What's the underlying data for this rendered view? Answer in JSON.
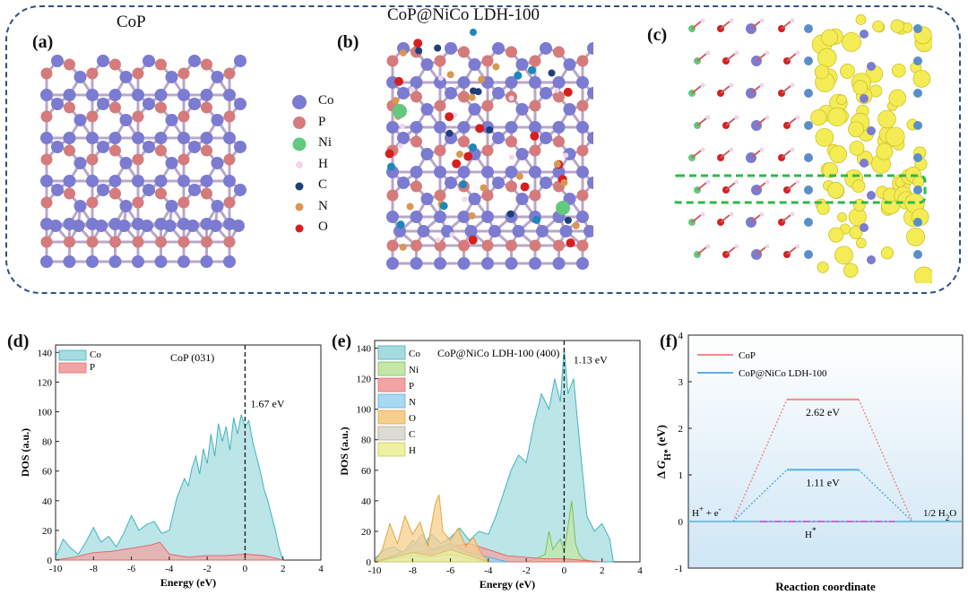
{
  "panel_labels": {
    "a": "(a)",
    "b": "(b)",
    "c": "(c)",
    "d": "(d)",
    "e": "(e)",
    "f": "(f)"
  },
  "structure_titles": {
    "a": "CoP",
    "b": "CoP@NiCo LDH-100"
  },
  "atom_legend": [
    {
      "label": "Co",
      "color": "#7b7bd1",
      "size": 16
    },
    {
      "label": "P",
      "color": "#d57b7b",
      "size": 14
    },
    {
      "label": "Ni",
      "color": "#62c97e",
      "size": 15
    },
    {
      "label": "H",
      "color": "#efd6ef",
      "size": 8
    },
    {
      "label": "C",
      "color": "#1f3f77",
      "size": 9
    },
    {
      "label": "N",
      "color": "#d89850",
      "size": 9
    },
    {
      "label": "O",
      "color": "#d61f1f",
      "size": 9
    }
  ],
  "colors": {
    "frame": "#2f4f86",
    "co_fill": "#a6dce0",
    "co_line": "#3fb4bd",
    "p_fill": "#f2a4a4",
    "p_line": "#e26b6b",
    "cop_line": "#f08a8a",
    "ldh_line": "#5ab0de",
    "h_line": "#e040e0",
    "isosurface": "#f3ec55",
    "box": "#2db84a"
  },
  "chart_data": [
    {
      "type": "area",
      "panel": "(d)",
      "annotation_title": "CoP (031)",
      "xlabel": "Energy (eV)",
      "ylabel": "DOS (a.u.)",
      "xlim": [
        -10,
        4
      ],
      "ylim": [
        0,
        145
      ],
      "xticks": [
        "-10",
        "-8",
        "-6",
        "-4",
        "-2",
        "0",
        "2",
        "4"
      ],
      "yticks": [
        "0",
        "20",
        "40",
        "60",
        "80",
        "100",
        "120",
        "140"
      ],
      "legend": [
        "Co",
        "P"
      ],
      "series": [
        {
          "name": "Co",
          "x": [
            -10,
            -9.6,
            -9.2,
            -8.8,
            -8.4,
            -8,
            -7.6,
            -7.2,
            -6.8,
            -6.4,
            -6,
            -5.6,
            -5.2,
            -4.8,
            -4.4,
            -4,
            -3.6,
            -3.2,
            -3,
            -2.8,
            -2.6,
            -2.4,
            -2.2,
            -2,
            -1.8,
            -1.6,
            -1.4,
            -1.2,
            -1,
            -0.8,
            -0.6,
            -0.4,
            -0.2,
            0,
            0.2,
            0.4,
            0.6,
            0.8,
            1,
            1.2,
            1.4,
            1.6,
            1.8,
            2
          ],
          "values": [
            2,
            14,
            8,
            4,
            12,
            22,
            12,
            16,
            9,
            18,
            30,
            20,
            24,
            26,
            18,
            20,
            42,
            55,
            50,
            62,
            70,
            58,
            75,
            65,
            85,
            70,
            92,
            80,
            90,
            74,
            96,
            85,
            98,
            90,
            94,
            80,
            70,
            60,
            48,
            40,
            30,
            20,
            8,
            0
          ]
        },
        {
          "name": "P",
          "x": [
            -10,
            -9,
            -8,
            -7,
            -6,
            -5,
            -4.5,
            -4,
            -3,
            -2,
            -1,
            0,
            1,
            2
          ],
          "values": [
            0,
            2,
            5,
            6,
            8,
            10,
            12,
            4,
            2,
            3,
            3,
            4,
            3,
            0
          ]
        }
      ],
      "annotations": [
        {
          "text": "1.67 eV",
          "x": 0.1,
          "y": 103
        }
      ],
      "vline_x": 0
    },
    {
      "type": "area",
      "panel": "(e)",
      "annotation_title": "CoP@NiCo LDH-100 (400)",
      "xlabel": "Energy (eV)",
      "ylabel": "DOS (a.u.)",
      "xlim": [
        -10,
        4
      ],
      "ylim": [
        0,
        145
      ],
      "xticks": [
        "-10",
        "-8",
        "-6",
        "-4",
        "-2",
        "0",
        "2",
        "4"
      ],
      "yticks": [
        "0",
        "20",
        "40",
        "60",
        "80",
        "100",
        "120",
        "140"
      ],
      "legend": [
        "Co",
        "Ni",
        "P",
        "N",
        "O",
        "C",
        "H"
      ],
      "series": [
        {
          "name": "Co",
          "x": [
            -10,
            -9.5,
            -9,
            -8.5,
            -8,
            -7.5,
            -7,
            -6.5,
            -6,
            -5.5,
            -5,
            -4.5,
            -4,
            -3.6,
            -3.2,
            -2.8,
            -2.4,
            -2,
            -1.6,
            -1.2,
            -0.8,
            -0.5,
            -0.2,
            0,
            0.2,
            0.5,
            0.8,
            1.2,
            1.6,
            2,
            2.4,
            2.6
          ],
          "values": [
            2,
            8,
            10,
            6,
            14,
            10,
            18,
            12,
            16,
            22,
            14,
            20,
            18,
            30,
            45,
            60,
            70,
            65,
            90,
            110,
            100,
            120,
            105,
            140,
            110,
            120,
            80,
            30,
            20,
            25,
            15,
            0
          ]
        },
        {
          "name": "Ni",
          "x": [
            -2,
            -1.5,
            -1,
            -0.8,
            -0.6,
            -0.2,
            0,
            0.4,
            0.6,
            0.8,
            1,
            1.5
          ],
          "values": [
            0,
            2,
            5,
            20,
            8,
            15,
            6,
            40,
            12,
            5,
            2,
            0
          ]
        },
        {
          "name": "P",
          "x": [
            -10,
            -9,
            -8,
            -7,
            -6,
            -5,
            -4,
            -3,
            -2,
            -1,
            0,
            1,
            2
          ],
          "values": [
            0,
            3,
            6,
            8,
            10,
            12,
            8,
            4,
            3,
            2,
            2,
            1,
            0
          ]
        },
        {
          "name": "N",
          "x": [
            -10,
            -9,
            -8,
            -7.5,
            -7,
            -6,
            -5,
            -4,
            -3
          ],
          "values": [
            0,
            4,
            10,
            18,
            8,
            12,
            6,
            3,
            0
          ]
        },
        {
          "name": "O",
          "x": [
            -10,
            -9.6,
            -9.2,
            -8.8,
            -8.4,
            -8,
            -7.6,
            -7.2,
            -6.8,
            -6.6,
            -6.4,
            -6,
            -5.6,
            -5.2,
            -4.8,
            -4.4,
            -4
          ],
          "values": [
            0,
            8,
            25,
            12,
            30,
            18,
            26,
            10,
            38,
            44,
            20,
            14,
            22,
            10,
            16,
            6,
            0
          ]
        },
        {
          "name": "C",
          "x": [
            -10,
            -9,
            -8,
            -7,
            -6,
            -5,
            -4
          ],
          "values": [
            0,
            2,
            4,
            3,
            5,
            2,
            0
          ]
        },
        {
          "name": "H",
          "x": [
            -10,
            -9,
            -8,
            -7,
            -6,
            -5,
            -4
          ],
          "values": [
            0,
            3,
            6,
            4,
            8,
            4,
            0
          ]
        }
      ],
      "annotations": [
        {
          "text": "1.13 eV",
          "x": 0.3,
          "y": 130
        }
      ],
      "vline_x": 0
    },
    {
      "type": "line",
      "panel": "(f)",
      "xlabel": "Reaction coordinate",
      "ylabel": "Δ G_{H*} (eV)",
      "ylim": [
        -1,
        4
      ],
      "yticks": [
        "-1",
        "0",
        "1",
        "2",
        "3",
        "4"
      ],
      "states": [
        "H⁺ + e⁻",
        "H*",
        "1/2 H₂O"
      ],
      "series": [
        {
          "name": "CoP",
          "values": [
            0,
            2.62,
            0
          ]
        },
        {
          "name": "CoP@NiCo LDH-100",
          "values": [
            0,
            1.11,
            0
          ]
        }
      ],
      "annotations": [
        "2.62 eV",
        "1.11 eV"
      ]
    }
  ]
}
